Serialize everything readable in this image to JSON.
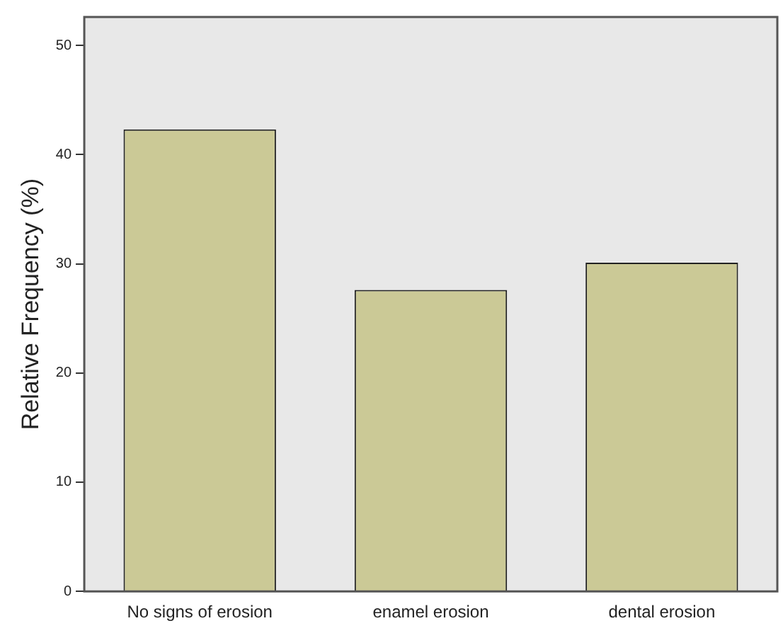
{
  "chart_data": {
    "type": "bar",
    "ylabel": "Relative Frequency (%)",
    "categories": [
      "No signs of erosion",
      "enamel erosion",
      "dental erosion"
    ],
    "values": [
      42.3,
      27.6,
      30.1
    ],
    "color": "#cbc996",
    "ylim": [
      0,
      52.6
    ],
    "yticks": [
      0,
      10,
      20,
      30,
      40,
      50
    ],
    "grid": false,
    "legend": false
  }
}
